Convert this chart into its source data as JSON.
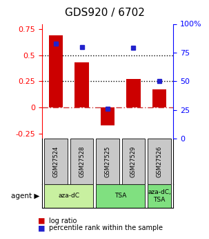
{
  "title": "GDS920 / 6702",
  "samples": [
    "GSM27524",
    "GSM27528",
    "GSM27525",
    "GSM27529",
    "GSM27526"
  ],
  "log_ratio": [
    0.69,
    0.43,
    -0.17,
    0.27,
    0.17
  ],
  "percentile": [
    83,
    80,
    26,
    79,
    50
  ],
  "ylim_left": [
    -0.3,
    0.8
  ],
  "ylim_right": [
    0,
    100
  ],
  "yticks_left": [
    -0.25,
    0,
    0.25,
    0.5,
    0.75
  ],
  "yticks_right": [
    0,
    25,
    50,
    75,
    100
  ],
  "hlines_dotted": [
    0.25,
    0.5
  ],
  "hline_dashed": 0.0,
  "bar_color": "#cc0000",
  "dot_color": "#2222cc",
  "bar_width": 0.55,
  "title_fontsize": 11,
  "tick_fontsize": 8,
  "sample_box_color": "#c8c8c8",
  "agent_groups": [
    {
      "label": "aza-dC",
      "start": 0,
      "end": 1,
      "color": "#c8f0a0"
    },
    {
      "label": "TSA",
      "start": 2,
      "end": 3,
      "color": "#80e080"
    },
    {
      "label": "aza-dC,\nTSA",
      "start": 4,
      "end": 4,
      "color": "#80e080"
    }
  ],
  "legend_red": "log ratio",
  "legend_blue": "percentile rank within the sample",
  "legend_fontsize": 7
}
